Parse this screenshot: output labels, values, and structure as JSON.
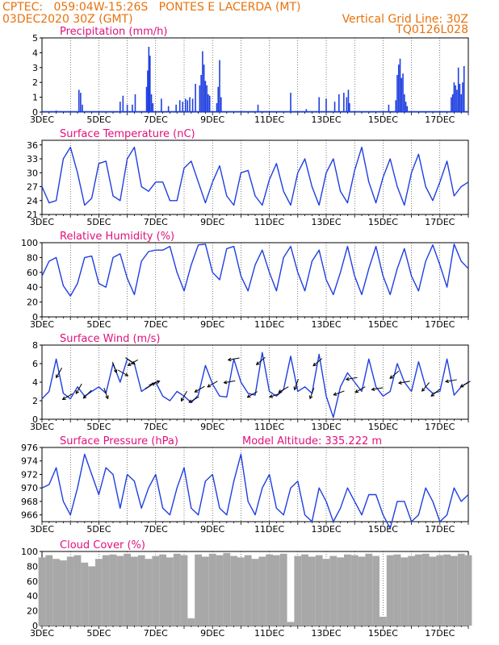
{
  "header": {
    "line1": "CPTEC:   059:04W-15:26S   PONTES E LACERDA (MT)",
    "line2_left": "03DEC2020 30Z (GMT)",
    "line2_right": "Vertical Grid Line: 30Z",
    "line3_right": "TQ0126L028"
  },
  "colors": {
    "header": "#e8720c",
    "title": "#e0107c",
    "line": "#1f3fe0",
    "bar": "#1f3fe0",
    "cloud": "#a8a8a8",
    "arrow": "#000000"
  },
  "x_ticks": [
    "3DEC",
    "5DEC",
    "7DEC",
    "9DEC",
    "11DEC",
    "13DEC",
    "15DEC",
    "17DEC"
  ],
  "chart_data": [
    {
      "type": "bar",
      "title": "Precipitation (mm/h)",
      "x_range": [
        0,
        15
      ],
      "ylim": [
        0,
        5
      ],
      "yticks": [
        0,
        1,
        2,
        3,
        4,
        5
      ],
      "x": [
        0.5,
        1.3,
        1.36,
        1.42,
        2.75,
        2.85,
        3.0,
        3.18,
        3.28,
        3.68,
        3.72,
        3.76,
        3.8,
        3.85,
        3.9,
        4.2,
        4.45,
        4.72,
        4.85,
        4.95,
        5.05,
        5.12,
        5.2,
        5.3,
        5.4,
        5.55,
        5.6,
        5.65,
        5.7,
        5.75,
        5.8,
        5.85,
        5.9,
        6.15,
        6.2,
        6.25,
        6.3,
        7.6,
        8.75,
        9.3,
        9.75,
        10.0,
        10.3,
        10.45,
        10.62,
        10.72,
        10.78,
        10.82,
        12.2,
        12.45,
        12.5,
        12.55,
        12.6,
        12.65,
        12.7,
        12.75,
        12.8,
        12.85,
        14.4,
        14.45,
        14.5,
        14.55,
        14.6,
        14.65,
        14.7,
        14.75,
        14.8,
        14.85
      ],
      "values": [
        0.1,
        1.5,
        1.3,
        0.5,
        0.7,
        1.1,
        0.5,
        0.5,
        1.2,
        1.7,
        2.8,
        4.4,
        3.8,
        1.2,
        0.6,
        0.9,
        0.4,
        0.5,
        0.8,
        0.7,
        0.9,
        0.8,
        1.0,
        0.9,
        1.9,
        1.8,
        2.5,
        4.1,
        3.2,
        2.1,
        1.8,
        1.2,
        1.1,
        0.6,
        1.7,
        3.5,
        1.0,
        0.5,
        1.3,
        0.2,
        1.0,
        0.9,
        0.7,
        1.2,
        1.3,
        1.0,
        1.5,
        0.6,
        0.5,
        0.8,
        2.5,
        3.2,
        3.6,
        2.3,
        2.6,
        1.2,
        0.7,
        0.4,
        1.0,
        1.2,
        2.0,
        1.8,
        1.5,
        3.0,
        1.9,
        1.2,
        2.0,
        3.1
      ]
    },
    {
      "type": "line",
      "title": "Surface Temperature (nC)",
      "x_range": [
        0,
        15
      ],
      "ylim": [
        21,
        37
      ],
      "yticks": [
        21,
        24,
        27,
        30,
        33,
        36
      ],
      "x": [
        0,
        0.25,
        0.5,
        0.75,
        1.0,
        1.25,
        1.5,
        1.75,
        2.0,
        2.25,
        2.5,
        2.75,
        3.0,
        3.25,
        3.5,
        3.75,
        4.0,
        4.25,
        4.5,
        4.75,
        5.0,
        5.25,
        5.5,
        5.75,
        6.0,
        6.25,
        6.5,
        6.75,
        7.0,
        7.25,
        7.5,
        7.75,
        8.0,
        8.25,
        8.5,
        8.75,
        9.0,
        9.25,
        9.5,
        9.75,
        10.0,
        10.25,
        10.5,
        10.75,
        11.0,
        11.25,
        11.5,
        11.75,
        12.0,
        12.25,
        12.5,
        12.75,
        13.0,
        13.25,
        13.5,
        13.75,
        14.0,
        14.25,
        14.5,
        14.75,
        15.0
      ],
      "values": [
        27,
        23.5,
        24,
        33,
        35.5,
        30,
        23,
        24.5,
        32,
        32.5,
        25,
        24,
        33,
        35.5,
        27,
        26,
        28,
        28,
        24,
        24,
        31,
        32.5,
        28,
        23.5,
        28,
        31.5,
        25,
        23,
        30,
        30.5,
        25,
        23,
        28.5,
        32,
        26,
        23,
        30,
        33,
        27,
        23,
        30,
        33,
        26,
        23.5,
        30.5,
        35.5,
        28,
        23.5,
        29,
        33,
        27,
        23,
        30,
        34,
        27,
        24,
        28,
        32.5,
        25,
        27,
        28
      ]
    },
    {
      "type": "line",
      "title": "Relative Humidity (%)",
      "x_range": [
        0,
        15
      ],
      "ylim": [
        0,
        100
      ],
      "yticks": [
        0,
        20,
        40,
        60,
        80,
        100
      ],
      "x": [
        0,
        0.25,
        0.5,
        0.75,
        1.0,
        1.25,
        1.5,
        1.75,
        2.0,
        2.25,
        2.5,
        2.75,
        3.0,
        3.25,
        3.5,
        3.75,
        4.0,
        4.25,
        4.5,
        4.75,
        5.0,
        5.25,
        5.5,
        5.75,
        6.0,
        6.25,
        6.5,
        6.75,
        7.0,
        7.25,
        7.5,
        7.75,
        8.0,
        8.25,
        8.5,
        8.75,
        9.0,
        9.25,
        9.5,
        9.75,
        10.0,
        10.25,
        10.5,
        10.75,
        11.0,
        11.25,
        11.5,
        11.75,
        12.0,
        12.25,
        12.5,
        12.75,
        13.0,
        13.25,
        13.5,
        13.75,
        14.0,
        14.25,
        14.5,
        14.75,
        15.0
      ],
      "values": [
        55,
        75,
        80,
        42,
        28,
        45,
        80,
        82,
        45,
        40,
        80,
        85,
        52,
        30,
        75,
        88,
        90,
        90,
        95,
        60,
        35,
        70,
        97,
        98,
        60,
        50,
        92,
        95,
        55,
        35,
        70,
        90,
        60,
        35,
        80,
        95,
        60,
        35,
        75,
        90,
        50,
        30,
        60,
        95,
        55,
        30,
        65,
        95,
        55,
        30,
        65,
        92,
        55,
        35,
        75,
        97,
        70,
        40,
        98,
        75,
        65
      ]
    },
    {
      "type": "line",
      "title": "Surface Wind (m/s)",
      "x_range": [
        0,
        15
      ],
      "ylim": [
        0,
        8
      ],
      "yticks": [
        0,
        2,
        4,
        6,
        8
      ],
      "x": [
        0,
        0.25,
        0.5,
        0.75,
        1.0,
        1.25,
        1.5,
        1.75,
        2.0,
        2.25,
        2.5,
        2.75,
        3.0,
        3.25,
        3.5,
        3.75,
        4.0,
        4.25,
        4.5,
        4.75,
        5.0,
        5.25,
        5.5,
        5.75,
        6.0,
        6.25,
        6.5,
        6.75,
        7.0,
        7.25,
        7.5,
        7.75,
        8.0,
        8.25,
        8.5,
        8.75,
        9.0,
        9.25,
        9.5,
        9.75,
        10.0,
        10.25,
        10.5,
        10.75,
        11.0,
        11.25,
        11.5,
        11.75,
        12.0,
        12.25,
        12.5,
        12.75,
        13.0,
        13.25,
        13.5,
        13.75,
        14.0,
        14.25,
        14.5,
        14.75,
        15.0
      ],
      "values": [
        2.2,
        3.0,
        6.5,
        2.8,
        2.2,
        3.5,
        2.5,
        3.0,
        3.5,
        2.8,
        6.0,
        4.0,
        6.5,
        6.0,
        3.0,
        3.5,
        4.0,
        2.5,
        2.0,
        3.0,
        2.5,
        1.8,
        2.6,
        5.8,
        3.8,
        2.5,
        2.4,
        6.5,
        4.0,
        2.8,
        2.6,
        7.2,
        3.0,
        2.5,
        3.2,
        6.8,
        3.0,
        3.5,
        2.8,
        7.0,
        2.5,
        0.2,
        3.5,
        5.0,
        4.0,
        3.0,
        6.5,
        3.5,
        2.5,
        3.0,
        6.0,
        4.0,
        3.0,
        6.2,
        3.5,
        2.8,
        3.0,
        6.5,
        2.6,
        3.5,
        4.0
      ],
      "arrows": [
        {
          "x": 0.6,
          "dir": 120
        },
        {
          "x": 0.9,
          "dir": 150
        },
        {
          "x": 1.3,
          "dir": 120
        },
        {
          "x": 1.6,
          "dir": 135
        },
        {
          "x": 2.25,
          "dir": 70
        },
        {
          "x": 2.55,
          "dir": 70
        },
        {
          "x": 2.85,
          "dir": 30
        },
        {
          "x": 3.1,
          "dir": 35
        },
        {
          "x": 3.2,
          "dir": 150
        },
        {
          "x": 3.8,
          "dir": 330
        },
        {
          "x": 3.95,
          "dir": 340
        },
        {
          "x": 5.0,
          "dir": 120
        },
        {
          "x": 5.35,
          "dir": 150
        },
        {
          "x": 5.55,
          "dir": 150
        },
        {
          "x": 6.0,
          "dir": 150
        },
        {
          "x": 6.6,
          "dir": 170
        },
        {
          "x": 6.75,
          "dir": 170
        },
        {
          "x": 7.4,
          "dir": 150
        },
        {
          "x": 7.7,
          "dir": 140
        },
        {
          "x": 8.2,
          "dir": 160
        },
        {
          "x": 8.5,
          "dir": 150
        },
        {
          "x": 8.95,
          "dir": 110
        },
        {
          "x": 9.5,
          "dir": 110
        },
        {
          "x": 9.7,
          "dir": 140
        },
        {
          "x": 10.45,
          "dir": 160
        },
        {
          "x": 10.9,
          "dir": 170
        },
        {
          "x": 11.2,
          "dir": 150
        },
        {
          "x": 11.8,
          "dir": 170
        },
        {
          "x": 12.4,
          "dir": 140
        },
        {
          "x": 12.75,
          "dir": 170
        },
        {
          "x": 13.5,
          "dir": 130
        },
        {
          "x": 13.85,
          "dir": 140
        },
        {
          "x": 14.4,
          "dir": 170
        },
        {
          "x": 14.9,
          "dir": 150
        }
      ]
    },
    {
      "type": "line",
      "title": "Surface Pressure (hPa)",
      "annotation": "Model Altitude: 335.222  m",
      "x_range": [
        0,
        15
      ],
      "ylim": [
        965,
        976
      ],
      "yticks": [
        966,
        968,
        970,
        972,
        974,
        976
      ],
      "x": [
        0,
        0.25,
        0.5,
        0.75,
        1.0,
        1.25,
        1.5,
        1.75,
        2.0,
        2.25,
        2.5,
        2.75,
        3.0,
        3.25,
        3.5,
        3.75,
        4.0,
        4.25,
        4.5,
        4.75,
        5.0,
        5.25,
        5.5,
        5.75,
        6.0,
        6.25,
        6.5,
        6.75,
        7.0,
        7.25,
        7.5,
        7.75,
        8.0,
        8.25,
        8.5,
        8.75,
        9.0,
        9.25,
        9.5,
        9.75,
        10.0,
        10.25,
        10.5,
        10.75,
        11.0,
        11.25,
        11.5,
        11.75,
        12.0,
        12.25,
        12.5,
        12.75,
        13.0,
        13.25,
        13.5,
        13.75,
        14.0,
        14.25,
        14.5,
        14.75,
        15.0
      ],
      "values": [
        970,
        970.5,
        973,
        968,
        966,
        970,
        975,
        972,
        969,
        973,
        972,
        967,
        972,
        971,
        967,
        970,
        972,
        967,
        966,
        970,
        973,
        967,
        966,
        971,
        972,
        967,
        966,
        971,
        975,
        968,
        966,
        970,
        972,
        967,
        966,
        970,
        971,
        966,
        965,
        970,
        968,
        965,
        967,
        970,
        968,
        966,
        969,
        969,
        966,
        964,
        968,
        968,
        965,
        966,
        970,
        968,
        965,
        966,
        970,
        968,
        969
      ]
    },
    {
      "type": "area",
      "title": "Cloud Cover (%)",
      "x_range": [
        0,
        15
      ],
      "ylim": [
        0,
        100
      ],
      "yticks": [
        0,
        20,
        40,
        60,
        80,
        100
      ],
      "x": [
        0,
        0.25,
        0.5,
        0.75,
        1.0,
        1.25,
        1.5,
        1.75,
        2.0,
        2.25,
        2.5,
        2.75,
        3.0,
        3.25,
        3.5,
        3.75,
        4.0,
        4.25,
        4.5,
        4.75,
        5.0,
        5.25,
        5.5,
        5.75,
        6.0,
        6.25,
        6.5,
        6.75,
        7.0,
        7.25,
        7.5,
        7.75,
        8.0,
        8.25,
        8.5,
        8.75,
        9.0,
        9.25,
        9.5,
        9.75,
        10.0,
        10.25,
        10.5,
        10.75,
        11.0,
        11.25,
        11.5,
        11.75,
        12.0,
        12.25,
        12.5,
        12.75,
        13.0,
        13.25,
        13.5,
        13.75,
        14.0,
        14.25,
        14.5,
        14.75,
        15.0
      ],
      "values": [
        92,
        95,
        90,
        88,
        93,
        95,
        85,
        80,
        90,
        95,
        96,
        94,
        97,
        93,
        95,
        90,
        94,
        96,
        92,
        97,
        95,
        10,
        96,
        93,
        97,
        95,
        98,
        94,
        92,
        95,
        90,
        93,
        96,
        95,
        97,
        5,
        94,
        96,
        93,
        95,
        90,
        94,
        92,
        96,
        95,
        93,
        97,
        94,
        12,
        95,
        96,
        92,
        94,
        96,
        97,
        93,
        95,
        96,
        94,
        97,
        95
      ]
    }
  ]
}
